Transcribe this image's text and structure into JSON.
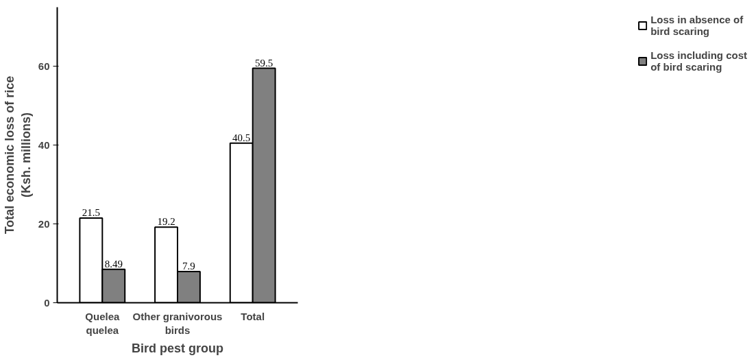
{
  "chart_data": {
    "type": "bar",
    "xlabel": "Bird pest group",
    "ylabel": "Total economic loss of rice\n(Ksh. millions)",
    "categories": [
      "Quelea\nquelea",
      "Other granivorous\nbirds",
      "Total"
    ],
    "series": [
      {
        "name": "Loss in absence of\nbird scaring",
        "color": "#ffffff",
        "values": [
          21.5,
          19.2,
          40.5
        ]
      },
      {
        "name": "Loss including cost\nof bird scaring",
        "color": "#808080",
        "values": [
          8.49,
          7.9,
          59.5
        ]
      }
    ],
    "ylim": [
      0,
      75
    ],
    "yticks": [
      0,
      20,
      40,
      60
    ],
    "grid": false,
    "legend": "right",
    "data_labels": true
  }
}
